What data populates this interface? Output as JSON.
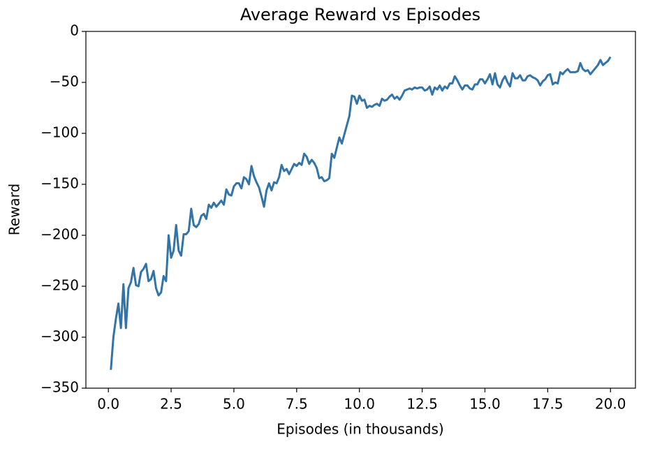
{
  "chart_data": {
    "type": "line",
    "title": "Average Reward vs Episodes",
    "xlabel": "Episodes (in thousands)",
    "ylabel": "Reward",
    "x": [
      0.1,
      0.2,
      0.3,
      0.4,
      0.5,
      0.6,
      0.7,
      0.8,
      0.9,
      1.0,
      1.1,
      1.2,
      1.3,
      1.4,
      1.5,
      1.6,
      1.7,
      1.8,
      1.9,
      2.0,
      2.1,
      2.2,
      2.3,
      2.4,
      2.5,
      2.6,
      2.7,
      2.8,
      2.9,
      3.0,
      3.1,
      3.2,
      3.3,
      3.4,
      3.5,
      3.6,
      3.7,
      3.8,
      3.9,
      4.0,
      4.1,
      4.2,
      4.3,
      4.4,
      4.5,
      4.6,
      4.7,
      4.8,
      4.9,
      5.0,
      5.1,
      5.2,
      5.3,
      5.4,
      5.5,
      5.6,
      5.7,
      5.8,
      5.9,
      6.0,
      6.1,
      6.2,
      6.3,
      6.4,
      6.5,
      6.6,
      6.7,
      6.8,
      6.9,
      7.0,
      7.1,
      7.2,
      7.3,
      7.4,
      7.5,
      7.6,
      7.7,
      7.8,
      7.9,
      8.0,
      8.1,
      8.2,
      8.3,
      8.4,
      8.5,
      8.6,
      8.7,
      8.8,
      8.9,
      9.0,
      9.1,
      9.2,
      9.3,
      9.4,
      9.5,
      9.6,
      9.7,
      9.8,
      9.9,
      10.0,
      10.1,
      10.2,
      10.3,
      10.4,
      10.5,
      10.6,
      10.7,
      10.8,
      10.9,
      11.0,
      11.1,
      11.2,
      11.3,
      11.4,
      11.5,
      11.6,
      11.7,
      11.8,
      11.9,
      12.0,
      12.1,
      12.2,
      12.3,
      12.4,
      12.5,
      12.6,
      12.7,
      12.8,
      12.9,
      13.0,
      13.1,
      13.2,
      13.3,
      13.4,
      13.5,
      13.6,
      13.7,
      13.8,
      13.9,
      14.0,
      14.1,
      14.2,
      14.3,
      14.4,
      14.5,
      14.6,
      14.7,
      14.8,
      14.9,
      15.0,
      15.1,
      15.2,
      15.3,
      15.4,
      15.5,
      15.6,
      15.7,
      15.8,
      15.9,
      16.0,
      16.1,
      16.2,
      16.3,
      16.4,
      16.5,
      16.6,
      16.7,
      16.8,
      16.9,
      17.0,
      17.1,
      17.2,
      17.3,
      17.4,
      17.5,
      17.6,
      17.7,
      17.8,
      17.9,
      18.0,
      18.1,
      18.2,
      18.3,
      18.4,
      18.5,
      18.6,
      18.7,
      18.8,
      18.9,
      19.0,
      19.1,
      19.2,
      19.3,
      19.4,
      19.5,
      19.6,
      19.7,
      19.8,
      19.9,
      20.0
    ],
    "series": [
      {
        "color": "#3274a8",
        "values": [
          -332,
          -300,
          -282,
          -267,
          -291,
          -248,
          -291,
          -252,
          -246,
          -232,
          -249,
          -250,
          -236,
          -233,
          -228,
          -245,
          -243,
          -235,
          -252,
          -259,
          -256,
          -240,
          -245,
          -200,
          -222,
          -215,
          -190,
          -215,
          -220,
          -199,
          -199,
          -196,
          -174,
          -190,
          -192,
          -189,
          -181,
          -179,
          -184,
          -170,
          -173,
          -168,
          -172,
          -169,
          -166,
          -170,
          -155,
          -160,
          -161,
          -152,
          -149,
          -149,
          -154,
          -143,
          -145,
          -150,
          -132,
          -142,
          -148,
          -153,
          -162,
          -172,
          -156,
          -149,
          -156,
          -148,
          -149,
          -143,
          -131,
          -137,
          -135,
          -140,
          -135,
          -130,
          -132,
          -129,
          -131,
          -120,
          -123,
          -130,
          -126,
          -129,
          -134,
          -144,
          -143,
          -147,
          -146,
          -144,
          -120,
          -124,
          -114,
          -104,
          -110,
          -101,
          -92,
          -83,
          -63,
          -64,
          -71,
          -63,
          -68,
          -67,
          -75,
          -73,
          -74,
          -72,
          -71,
          -73,
          -66,
          -68,
          -67,
          -64,
          -62,
          -66,
          -64,
          -67,
          -63,
          -58,
          -57,
          -56,
          -57,
          -55,
          -56,
          -55,
          -55,
          -58,
          -57,
          -54,
          -62,
          -55,
          -57,
          -53,
          -58,
          -54,
          -56,
          -51,
          -51,
          -44,
          -48,
          -53,
          -57,
          -53,
          -53,
          -56,
          -57,
          -52,
          -52,
          -47,
          -47,
          -51,
          -47,
          -42,
          -52,
          -41,
          -52,
          -55,
          -48,
          -44,
          -50,
          -54,
          -41,
          -46,
          -46,
          -43,
          -48,
          -48,
          -44,
          -43,
          -45,
          -46,
          -48,
          -53,
          -49,
          -47,
          -43,
          -42,
          -52,
          -50,
          -51,
          -40,
          -42,
          -39,
          -37,
          -40,
          -40,
          -40,
          -39,
          -31,
          -37,
          -39,
          -38,
          -42,
          -39,
          -36,
          -33,
          -28,
          -33,
          -31,
          -29,
          -25
        ]
      }
    ],
    "xlim": [
      -0.895,
      20.995
    ],
    "ylim": [
      -350,
      0
    ],
    "xticks": [
      {
        "value": 0,
        "label": "0.0"
      },
      2.5,
      {
        "value": 5,
        "label": "5.0"
      },
      7.5,
      {
        "value": 10,
        "label": "10.0"
      },
      12.5,
      {
        "value": 15,
        "label": "15.0"
      },
      17.5,
      {
        "value": 20,
        "label": "20.0"
      }
    ],
    "yticks": [
      {
        "value": -350,
        "label": "−350"
      },
      {
        "value": -300,
        "label": "−300"
      },
      {
        "value": -250,
        "label": "−250"
      },
      {
        "value": -200,
        "label": "−200"
      },
      {
        "value": -150,
        "label": "−150"
      },
      {
        "value": -100,
        "label": "−100"
      },
      {
        "value": -50,
        "label": "−50"
      },
      0
    ],
    "grid": false
  }
}
